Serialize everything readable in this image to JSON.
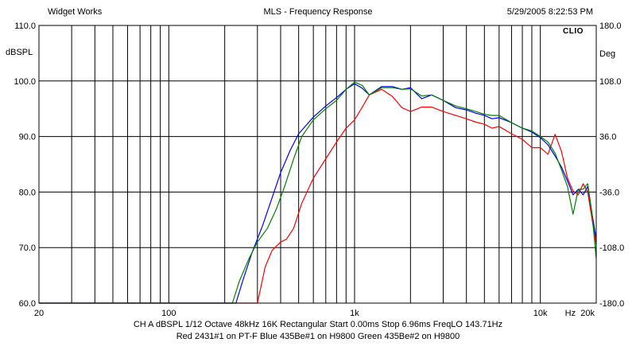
{
  "header": {
    "app_title": "Widget Works",
    "title": "MLS - Frequency Response",
    "timestamp": "5/29/2005 8:22:53 PM",
    "brand": "CLIO"
  },
  "footer": {
    "settings": "CH A   dBSPL   1/12 Octave   48kHz   16K   Rectangular   Start 0.00ms      Stop 6.96ms      FreqLO 143.71Hz",
    "legend": "Red 2431#1 on PT-F  Blue 435Be#1 on H9800   Green 435Be#2 on H9800"
  },
  "chart_data": {
    "type": "line",
    "title": "MLS - Frequency Response",
    "xlabel": "Hz",
    "ylabel": "dBSPL",
    "y2label": "Deg",
    "xscale": "log",
    "xlim": [
      20,
      20000
    ],
    "ylim": [
      60,
      110
    ],
    "y2lim": [
      -180,
      180
    ],
    "grid": true,
    "x_tick_labels": [
      {
        "value": 20,
        "label": "20"
      },
      {
        "value": 100,
        "label": "100"
      },
      {
        "value": 1000,
        "label": "1k"
      },
      {
        "value": 10000,
        "label": "10k"
      },
      {
        "value": 20000,
        "label": "20k"
      }
    ],
    "y_tick_labels": [
      "60.0",
      "70.0",
      "80.0",
      "90.0",
      "100.0",
      "110.0"
    ],
    "y2_tick_labels": [
      "-180.0",
      "-108.0",
      "-36.0",
      "36.0",
      "108.0",
      "180.0"
    ],
    "series": [
      {
        "name": "Red 2431#1 on PT-F",
        "color": "#ff0000",
        "x": [
          20,
          200,
          250,
          280,
          300,
          330,
          360,
          400,
          430,
          470,
          520,
          600,
          700,
          800,
          900,
          1000,
          1100,
          1200,
          1400,
          1600,
          1800,
          2000,
          2300,
          2600,
          3000,
          3500,
          4000,
          4500,
          5000,
          5500,
          6000,
          7000,
          8000,
          9000,
          10000,
          11000,
          12000,
          13000,
          14000,
          15000,
          16000,
          17000,
          18000,
          19000,
          20000
        ],
        "y": [
          60,
          60,
          60,
          60,
          60,
          66.5,
          69.5,
          71,
          71.5,
          73.5,
          78,
          82.5,
          86,
          89,
          91.5,
          93,
          95.3,
          97.5,
          98.5,
          97.2,
          95.2,
          94.5,
          95.3,
          95.3,
          94.5,
          93.8,
          93.2,
          92.6,
          92.2,
          91.5,
          91.8,
          90.5,
          89.5,
          88,
          88,
          86.8,
          90.4,
          87.3,
          82.5,
          80.2,
          79.5,
          81.5,
          80,
          75,
          70.5
        ]
      },
      {
        "name": "Blue 435Be#1 on H9800",
        "color": "#0000ff",
        "x": [
          20,
          230,
          250,
          280,
          320,
          360,
          400,
          450,
          500,
          600,
          700,
          800,
          900,
          1000,
          1100,
          1200,
          1400,
          1600,
          1800,
          2000,
          2300,
          2600,
          3000,
          3500,
          4000,
          4500,
          5000,
          5500,
          6000,
          7000,
          8000,
          9000,
          10000,
          11000,
          12000,
          13000,
          14000,
          15000,
          16000,
          17000,
          18000,
          19000,
          20000
        ],
        "y": [
          60,
          60,
          64,
          69,
          74,
          79,
          83.5,
          87.5,
          90.5,
          93.5,
          95.5,
          97,
          98.5,
          99.5,
          98.7,
          97.5,
          99,
          99,
          98.5,
          98.8,
          96.8,
          97.5,
          96.5,
          95.2,
          94.8,
          94.2,
          93.8,
          93.2,
          93.4,
          92.5,
          91.5,
          90.8,
          89.8,
          88.5,
          86.5,
          84.5,
          82,
          79.5,
          80.5,
          79.5,
          81,
          76,
          71.5
        ]
      },
      {
        "name": "Green 435Be#2 on H9800",
        "color": "#008000",
        "x": [
          20,
          220,
          240,
          270,
          300,
          340,
          380,
          420,
          470,
          520,
          600,
          700,
          800,
          900,
          1000,
          1100,
          1200,
          1400,
          1600,
          1800,
          2000,
          2300,
          2600,
          3000,
          3500,
          4000,
          4500,
          5000,
          5500,
          6000,
          7000,
          8000,
          9000,
          10000,
          11000,
          12000,
          13000,
          14000,
          15000,
          16000,
          17000,
          18000,
          19000,
          20000
        ],
        "y": [
          60,
          60,
          64,
          68,
          71,
          73.5,
          77,
          81,
          86,
          90,
          93,
          95,
          96.5,
          98.5,
          99.8,
          99.2,
          97.5,
          98.8,
          98.8,
          98.5,
          98.6,
          97.3,
          97.5,
          96.5,
          95.5,
          95,
          94.5,
          94,
          93.8,
          93.8,
          92.5,
          91.5,
          91,
          90,
          89,
          87,
          84,
          81,
          76,
          80.5,
          80.5,
          81.5,
          76,
          68
        ]
      }
    ]
  }
}
